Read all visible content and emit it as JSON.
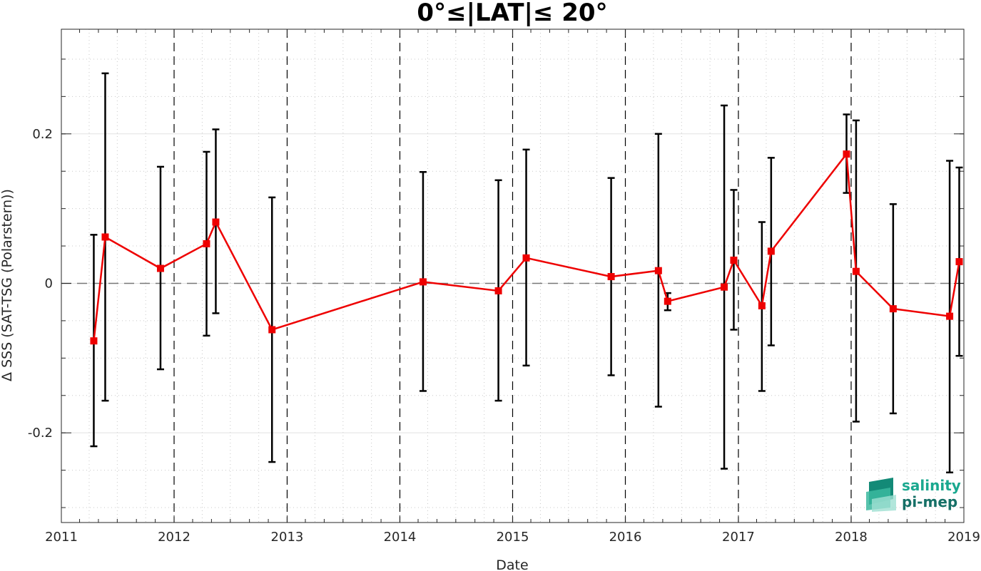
{
  "chart_data": {
    "type": "line",
    "title": "0°≤|LAT|≤ 20°",
    "xlabel": "Date",
    "ylabel": "Δ SSS (SAT-TSG (Polarstern))",
    "xlim": [
      "2011-01-01",
      "2019-01-01"
    ],
    "ylim": [
      -0.32,
      0.34
    ],
    "x_ticks": [
      "2011",
      "2012",
      "2013",
      "2014",
      "2015",
      "2016",
      "2017",
      "2018",
      "2019"
    ],
    "y_ticks": [
      {
        "value": -0.2,
        "label": "-0.2"
      },
      {
        "value": 0,
        "label": "0"
      },
      {
        "value": 0.2,
        "label": "0.2"
      }
    ],
    "grid": true,
    "zero_line": 0,
    "year_boundaries": [
      "2012",
      "2013",
      "2014",
      "2015",
      "2016",
      "2017",
      "2018"
    ],
    "series": [
      {
        "color": "#ee0000",
        "error_bar_color": "#000000",
        "points": [
          {
            "date": "2011-04-16",
            "y": -0.077,
            "low": -0.218,
            "high": 0.065
          },
          {
            "date": "2011-05-23",
            "y": 0.062,
            "low": -0.157,
            "high": 0.281
          },
          {
            "date": "2011-11-18",
            "y": 0.02,
            "low": -0.115,
            "high": 0.156
          },
          {
            "date": "2012-04-15",
            "y": 0.053,
            "low": -0.07,
            "high": 0.176
          },
          {
            "date": "2012-05-15",
            "y": 0.082,
            "low": -0.04,
            "high": 0.206
          },
          {
            "date": "2012-11-13",
            "y": -0.062,
            "low": -0.239,
            "high": 0.115
          },
          {
            "date": "2014-03-17",
            "y": 0.002,
            "low": -0.144,
            "high": 0.149
          },
          {
            "date": "2014-11-16",
            "y": -0.01,
            "low": -0.157,
            "high": 0.138
          },
          {
            "date": "2015-02-14",
            "y": 0.034,
            "low": -0.11,
            "high": 0.179
          },
          {
            "date": "2015-11-16",
            "y": 0.009,
            "low": -0.123,
            "high": 0.141
          },
          {
            "date": "2016-04-17",
            "y": 0.017,
            "low": -0.165,
            "high": 0.2
          },
          {
            "date": "2016-05-17",
            "y": -0.024,
            "low": -0.036,
            "high": -0.013
          },
          {
            "date": "2016-11-16",
            "y": -0.005,
            "low": -0.248,
            "high": 0.238
          },
          {
            "date": "2016-12-17",
            "y": 0.031,
            "low": -0.062,
            "high": 0.125
          },
          {
            "date": "2017-03-18",
            "y": -0.03,
            "low": -0.144,
            "high": 0.082
          },
          {
            "date": "2017-04-17",
            "y": 0.043,
            "low": -0.083,
            "high": 0.168
          },
          {
            "date": "2017-12-17",
            "y": 0.173,
            "low": 0.121,
            "high": 0.226
          },
          {
            "date": "2018-01-17",
            "y": 0.016,
            "low": -0.185,
            "high": 0.218
          },
          {
            "date": "2018-05-17",
            "y": -0.034,
            "low": -0.174,
            "high": 0.106
          },
          {
            "date": "2018-11-16",
            "y": -0.044,
            "low": -0.253,
            "high": 0.164
          },
          {
            "date": "2018-12-17",
            "y": 0.029,
            "low": -0.097,
            "high": 0.155
          }
        ]
      }
    ]
  },
  "logo": {
    "line1": "salinity",
    "line2": "pi-mep",
    "colors": {
      "line1": "#1aa88f",
      "line2": "#156f66",
      "mark_dark": "#138a77",
      "mark_light": "#7fd6c5"
    }
  }
}
